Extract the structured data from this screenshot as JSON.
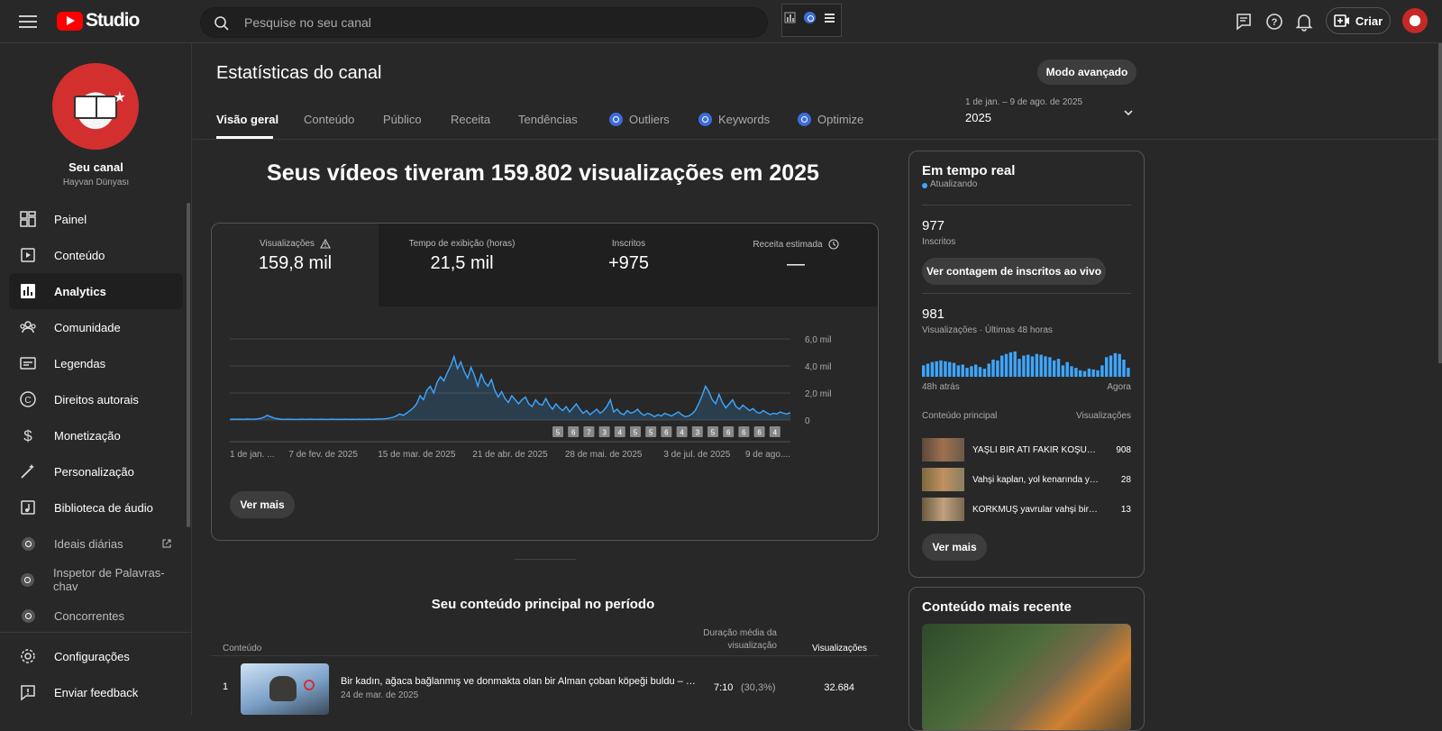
{
  "topbar": {
    "logo_text": "Studio",
    "search_placeholder": "Pesquise no seu canal",
    "create_label": "Criar"
  },
  "channel": {
    "name": "Seu canal",
    "handle": "Hayvan Dünyası"
  },
  "sidebar": {
    "items": [
      {
        "label": "Painel",
        "icon": "dashboard-icon"
      },
      {
        "label": "Conteúdo",
        "icon": "content-icon"
      },
      {
        "label": "Analytics",
        "icon": "analytics-icon"
      },
      {
        "label": "Comunidade",
        "icon": "community-icon"
      },
      {
        "label": "Legendas",
        "icon": "subtitles-icon"
      },
      {
        "label": "Direitos autorais",
        "icon": "copyright-icon"
      },
      {
        "label": "Monetização",
        "icon": "dollar-icon"
      },
      {
        "label": "Personalização",
        "icon": "magic-wand-icon"
      },
      {
        "label": "Biblioteca de áudio",
        "icon": "audio-library-icon"
      },
      {
        "label": "Ideais diárias",
        "icon": "vidiq-icon"
      },
      {
        "label": "Inspetor de Palavras-chav",
        "icon": "vidiq-icon"
      },
      {
        "label": "Concorrentes",
        "icon": "vidiq-icon"
      }
    ],
    "settings_label": "Configurações",
    "feedback_label": "Enviar feedback"
  },
  "page": {
    "title": "Estatísticas do canal",
    "advanced_mode": "Modo avançado",
    "tabs": [
      "Visão geral",
      "Conteúdo",
      "Público",
      "Receita",
      "Tendências",
      "Outliers",
      "Keywords",
      "Optimize"
    ],
    "date_range": "1 de jan. – 9 de ago. de 2025",
    "date_year": "2025",
    "headline": "Seus vídeos tiveram 159.802 visualizações em 2025"
  },
  "metrics": [
    {
      "label": "Visualizações",
      "value": "159,8 mil"
    },
    {
      "label": "Tempo de exibição (horas)",
      "value": "21,5 mil"
    },
    {
      "label": "Inscritos",
      "value": "+975"
    },
    {
      "label": "Receita estimada",
      "value": "—"
    }
  ],
  "chart_data": {
    "type": "area",
    "y_ticks": [
      "6,0 mil",
      "4,0 mil",
      "2,0 mil",
      "0"
    ],
    "ylim": [
      0,
      6000
    ],
    "x_ticks": [
      "1 de jan. ...",
      "7 de fev. de 2025",
      "15 de mar. de 2025",
      "21 de abr. de 2025",
      "28 de mai. de 2025",
      "3 de jul. de 2025",
      "9 de ago...."
    ],
    "values": [
      50,
      60,
      55,
      60,
      50,
      70,
      60,
      55,
      80,
      120,
      200,
      350,
      250,
      150,
      100,
      60,
      50,
      60,
      55,
      50,
      45,
      60,
      50,
      55,
      60,
      50,
      55,
      60,
      50,
      45,
      60,
      50,
      55,
      50,
      60,
      50,
      55,
      50,
      60,
      50,
      55,
      60,
      50,
      70,
      80,
      90,
      100,
      150,
      200,
      300,
      450,
      350,
      500,
      700,
      900,
      1200,
      1800,
      1500,
      2200,
      2500,
      2000,
      2800,
      3200,
      2900,
      3500,
      4000,
      4700,
      3800,
      4300,
      3600,
      3100,
      3900,
      3300,
      2500,
      3400,
      2800,
      2500,
      3000,
      2200,
      1700,
      2100,
      1600,
      1300,
      1800,
      1500,
      1200,
      1500,
      1700,
      1200,
      1000,
      1500,
      1200,
      1100,
      1600,
      1100,
      800,
      1200,
      900,
      700,
      1000,
      600,
      900,
      1200,
      800,
      500,
      700,
      400,
      600,
      800,
      500,
      700,
      1000,
      1500,
      600,
      800,
      500,
      400,
      700,
      500,
      600,
      800,
      500,
      350,
      500,
      400,
      250,
      400,
      300,
      500,
      400,
      300,
      450,
      600,
      400,
      250,
      300,
      450,
      700,
      1200,
      1800,
      2500,
      2100,
      1500,
      1200,
      1900,
      1300,
      900,
      1200,
      1500,
      1000,
      800,
      1100,
      900,
      700,
      850,
      600,
      500,
      700,
      550,
      400,
      500,
      450,
      600,
      500,
      450,
      550
    ],
    "video_markers": [
      "5",
      "6",
      "7",
      "3",
      "4",
      "5",
      "5",
      "6",
      "4",
      "3",
      "5",
      "6",
      "6",
      "6",
      "4"
    ]
  },
  "top_content": {
    "title": "Seu conteúdo principal no período",
    "col_content": "Conteúdo",
    "col_duration": "Duração média da visualização",
    "col_views": "Visualizações",
    "rows": [
      {
        "rank": "1",
        "title": "Bir kadın, ağaca bağlanmış ve donmakta olan bir Alman çoban köpeği buldu – so...",
        "date": "24 de mar. de 2025",
        "duration": "7:10",
        "pct": "(30,3%)",
        "views": "32.684"
      }
    ]
  },
  "realtime": {
    "title": "Em tempo real",
    "status": "Atualizando",
    "subs_value": "977",
    "subs_label": "Inscritos",
    "subs_button": "Ver contagem de inscritos ao vivo",
    "views_value": "981",
    "views_label": "Visualizações · Últimas 48 horas",
    "bars": [
      14,
      16,
      18,
      19,
      20,
      19,
      18,
      17,
      14,
      15,
      11,
      13,
      15,
      12,
      10,
      16,
      21,
      20,
      26,
      28,
      30,
      31,
      22,
      26,
      27,
      25,
      28,
      27,
      25,
      24,
      20,
      22,
      14,
      18,
      13,
      11,
      8,
      7,
      10,
      9,
      8,
      14,
      24,
      26,
      29,
      28,
      21,
      11
    ],
    "left_label": "48h atrás",
    "right_label": "Agora",
    "col_content": "Conteúdo principal",
    "col_views": "Visualizações",
    "top": [
      {
        "title": "YAŞLI BİR ATI FAKİR KOŞUYOR...",
        "views": "908"
      },
      {
        "title": "Vahşi kaplan, yol kenarında yardım...",
        "views": "28"
      },
      {
        "title": "KORKMUŞ yavrular vahşi bir kaplan...",
        "views": "13"
      }
    ],
    "more": "Ver mais"
  },
  "recent": {
    "title": "Conteúdo mais recente"
  },
  "see_more": "Ver mais",
  "colors": {
    "accent": "#3ea6ff",
    "youtube_red": "#ff0000",
    "vidiq_blue": "#3d6dd8"
  }
}
